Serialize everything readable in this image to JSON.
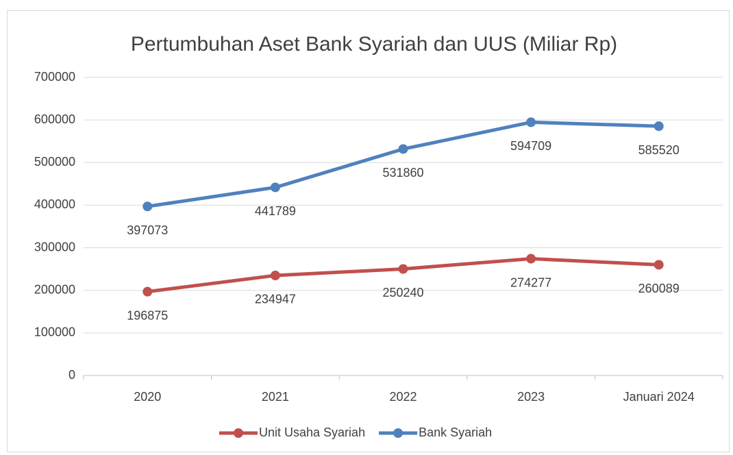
{
  "chart_data": {
    "type": "line",
    "title": "Pertumbuhan Aset Bank Syariah dan UUS (Miliar Rp)",
    "categories": [
      "2020",
      "2021",
      "2022",
      "2023",
      "Januari 2024"
    ],
    "series": [
      {
        "name": "Unit Usaha Syariah",
        "color": "#c0504d",
        "values": [
          196875,
          234947,
          250240,
          274277,
          260089
        ]
      },
      {
        "name": "Bank Syariah",
        "color": "#4f81bd",
        "values": [
          397073,
          441789,
          531860,
          594709,
          585520
        ]
      }
    ],
    "ylim": [
      0,
      700000
    ],
    "yticks": [
      0,
      100000,
      200000,
      300000,
      400000,
      500000,
      600000,
      700000
    ],
    "grid": true,
    "legend": "bottom"
  }
}
